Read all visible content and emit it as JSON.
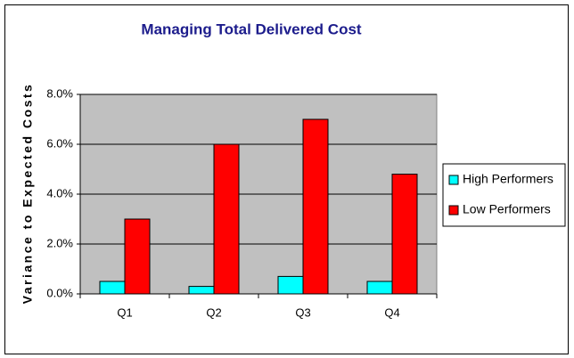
{
  "chart_data": {
    "type": "bar",
    "title": "Managing Total Delivered Cost",
    "y_label": "Variance to Expected Costs",
    "categories": [
      "Q1",
      "Q2",
      "Q3",
      "Q4"
    ],
    "series": [
      {
        "name": "High Performers",
        "color": "#00ffff",
        "values": [
          0.5,
          0.3,
          0.7,
          0.5
        ]
      },
      {
        "name": "Low Performers",
        "color": "#ff0000",
        "values": [
          3.0,
          6.0,
          7.0,
          4.8
        ]
      }
    ],
    "ylim": [
      0,
      8
    ],
    "yticks": [
      {
        "value": 0,
        "label": "0.0%"
      },
      {
        "value": 2,
        "label": "2.0%"
      },
      {
        "value": 4,
        "label": "4.0%"
      },
      {
        "value": 6,
        "label": "6.0%"
      },
      {
        "value": 8,
        "label": "8.0%"
      }
    ],
    "grid": true,
    "legend": "right",
    "plot_background": "#c0c0c0"
  }
}
